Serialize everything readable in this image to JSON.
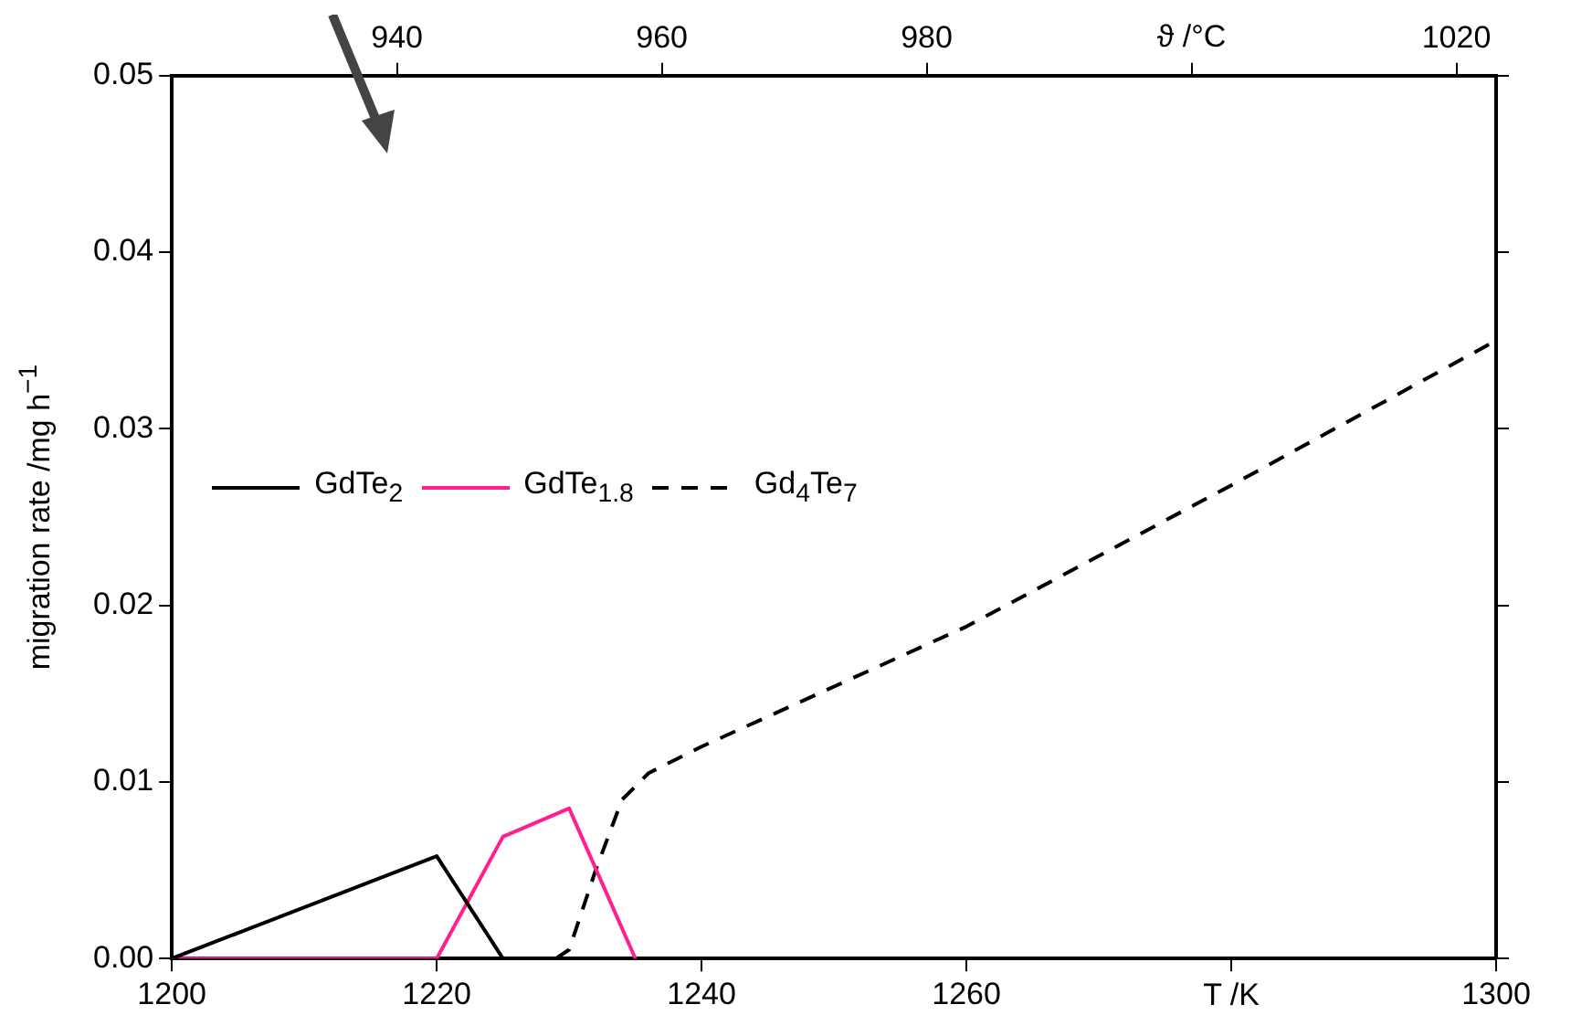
{
  "chart_data": {
    "type": "line",
    "xlabel": "T /K",
    "x2label": "ϑ /°C",
    "ylabel": "migration rate /mg h$^{−1}$",
    "xlim": [
      1200,
      1300
    ],
    "xticks": [
      1200,
      1220,
      1240,
      1260,
      {
        "value": 1280,
        "label": null
      },
      1300
    ],
    "x2lim": [
      923,
      1023
    ],
    "x2ticks": [
      940,
      960,
      980,
      {
        "value": 1000,
        "label": null
      },
      1020
    ],
    "ylim": [
      0,
      0.05
    ],
    "yticks": [
      {
        "value": 0,
        "label": "0.00"
      },
      {
        "value": 0.01,
        "label": "0.01"
      },
      {
        "value": 0.02,
        "label": "0.02"
      },
      {
        "value": 0.03,
        "label": "0.03"
      },
      {
        "value": 0.04,
        "label": "0.04"
      },
      {
        "value": 0.05,
        "label": "0.05"
      }
    ],
    "grid": false,
    "legend": "left",
    "marker": "none",
    "series": [
      {
        "name": "GdTe$_{2}$",
        "color": "#000000",
        "line_style": "solid",
        "x": [
          1200,
          1220,
          1225
        ],
        "values": [
          0,
          0.0058,
          0
        ]
      },
      {
        "name": "GdTe$_{1.8}$",
        "color": "#ff1f8e",
        "line_style": "solid",
        "x": [
          1200,
          1220,
          1225,
          1230,
          1235
        ],
        "values": [
          0,
          0,
          0.0069,
          0.0085,
          0
        ]
      },
      {
        "name": "Gd$_{4}$Te$_{7}$",
        "color": "#000000",
        "line_style": "dashed",
        "x": [
          1229,
          1230,
          1232,
          1234,
          1236,
          1240,
          1260,
          1280,
          1300
        ],
        "values": [
          0,
          0.0005,
          0.005,
          0.009,
          0.0105,
          0.012,
          0.0188,
          0.0268,
          0.035
        ]
      }
    ]
  }
}
